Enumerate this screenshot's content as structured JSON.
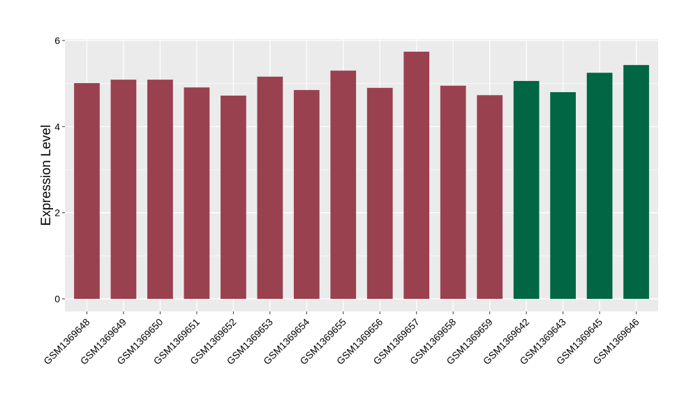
{
  "chart_data": {
    "type": "bar",
    "title": "",
    "xlabel": "",
    "ylabel": "Expression Level",
    "ylim": [
      0,
      6
    ],
    "yticks": [
      "0",
      "2",
      "4",
      "6"
    ],
    "grid": true,
    "legend": "none",
    "categories": [
      "GSM1369648",
      "GSM1369649",
      "GSM1369650",
      "GSM1369651",
      "GSM1369652",
      "GSM1369653",
      "GSM1369654",
      "GSM1369655",
      "GSM1369656",
      "GSM1369657",
      "GSM1369658",
      "GSM1369659",
      "GSM1369642",
      "GSM1369643",
      "GSM1369645",
      "GSM1369646"
    ],
    "values": [
      5.01,
      5.09,
      5.09,
      4.91,
      4.72,
      5.16,
      4.85,
      5.3,
      4.9,
      5.74,
      4.95,
      4.73,
      5.06,
      4.8,
      5.25,
      5.43
    ],
    "groups": [
      0,
      0,
      0,
      0,
      0,
      0,
      0,
      0,
      0,
      0,
      0,
      0,
      1,
      1,
      1,
      1
    ],
    "colors": [
      "#9A4150",
      "#006644"
    ]
  }
}
